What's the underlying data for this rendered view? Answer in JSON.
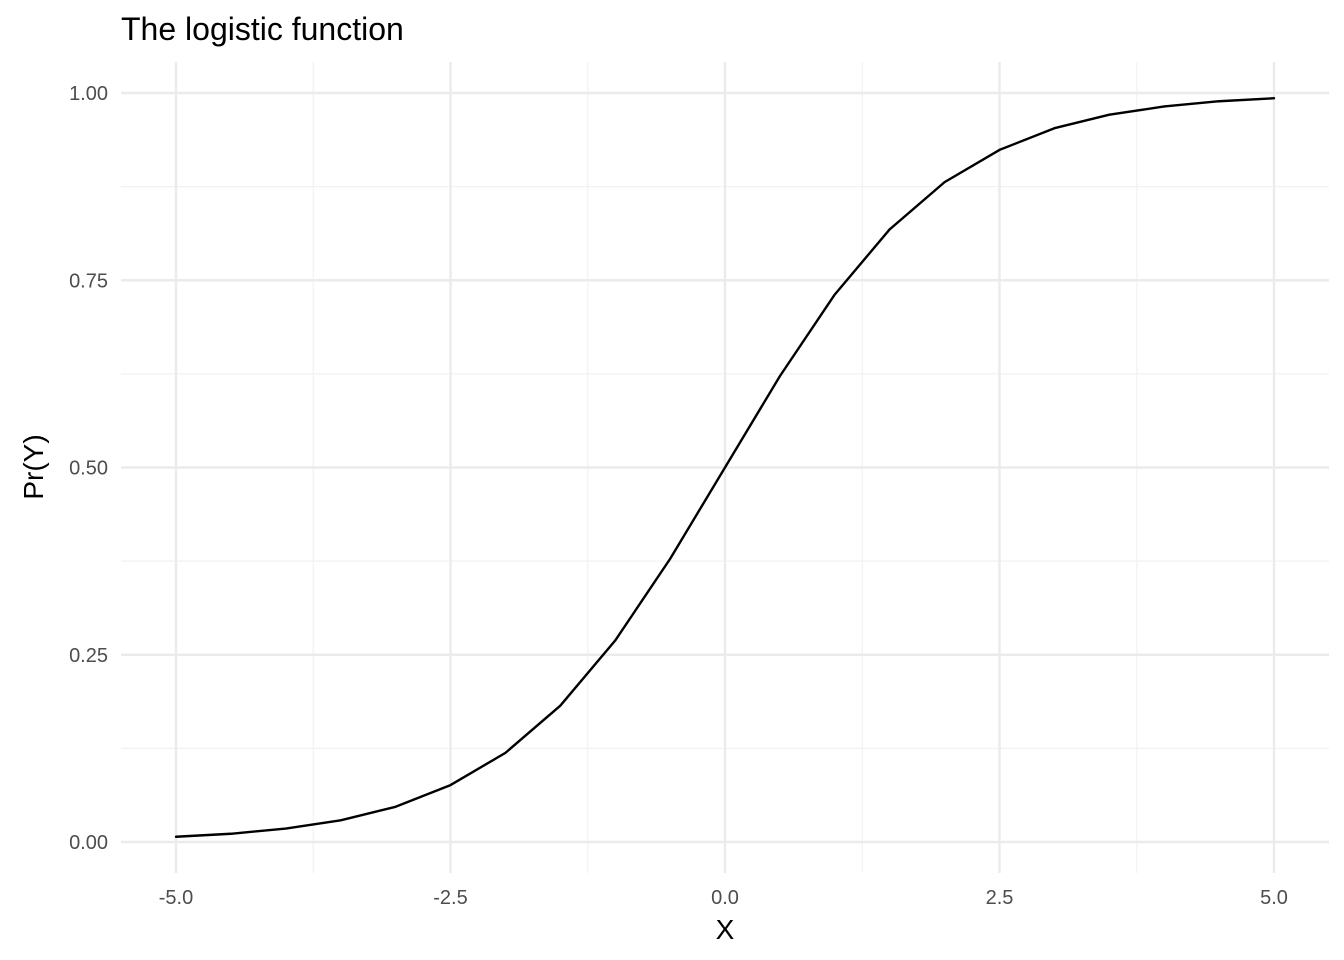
{
  "chart_data": {
    "type": "line",
    "title": "The logistic function",
    "xlabel": "X",
    "ylabel": "Pr(Y)",
    "xlim": [
      -5,
      5
    ],
    "ylim": [
      0,
      1
    ],
    "x_ticks": [
      -5.0,
      -2.5,
      0.0,
      2.5,
      5.0
    ],
    "x_tick_labels": [
      "-5.0",
      "-2.5",
      "0.0",
      "2.5",
      "5.0"
    ],
    "y_ticks": [
      0.0,
      0.25,
      0.5,
      0.75,
      1.0
    ],
    "y_tick_labels": [
      "0.00",
      "0.25",
      "0.50",
      "0.75",
      "1.00"
    ],
    "grid": true,
    "legend": "none",
    "colors": {
      "line": "#000000",
      "grid_major": "#ebebeb",
      "grid_minor": "#f2f2f2",
      "tick_text": "#4d4d4d",
      "background": "#ffffff"
    },
    "series": [
      {
        "x": [
          -5.0,
          -4.5,
          -4.0,
          -3.5,
          -3.0,
          -2.5,
          -2.0,
          -1.5,
          -1.0,
          -0.5,
          0.0,
          0.5,
          1.0,
          1.5,
          2.0,
          2.5,
          3.0,
          3.5,
          4.0,
          4.5,
          5.0
        ],
        "y": [
          0.007,
          0.011,
          0.018,
          0.029,
          0.047,
          0.076,
          0.119,
          0.182,
          0.269,
          0.378,
          0.5,
          0.622,
          0.731,
          0.818,
          0.881,
          0.924,
          0.953,
          0.971,
          0.982,
          0.989,
          0.993
        ]
      }
    ]
  }
}
